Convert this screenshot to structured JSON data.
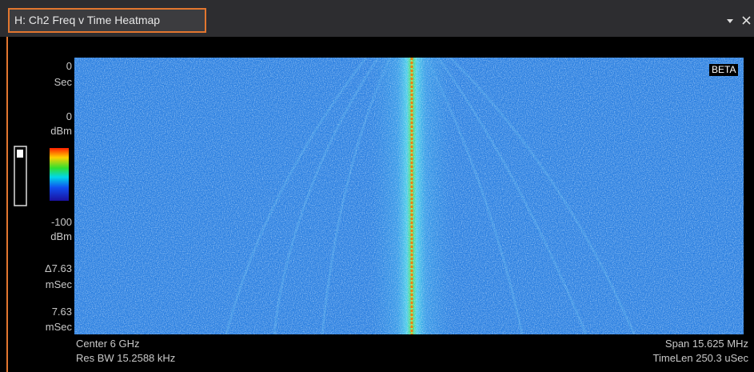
{
  "window": {
    "title": "H: Ch2 Freq v Time Heatmap"
  },
  "plot": {
    "badge": "BETA"
  },
  "left_labels": {
    "time_top": [
      "0",
      "Sec"
    ],
    "ref_level": [
      "0",
      "dBm"
    ],
    "bottom_level": [
      "-100",
      "dBm"
    ],
    "delta_time": [
      "Δ7.63",
      "mSec"
    ],
    "time_bottom": [
      "7.63",
      "mSec"
    ]
  },
  "footer": {
    "left": [
      "Center 6 GHz",
      "Res BW 15.2588 kHz"
    ],
    "right": [
      "Span 15.625 MHz",
      "TimeLen 250.3 uSec"
    ]
  }
}
